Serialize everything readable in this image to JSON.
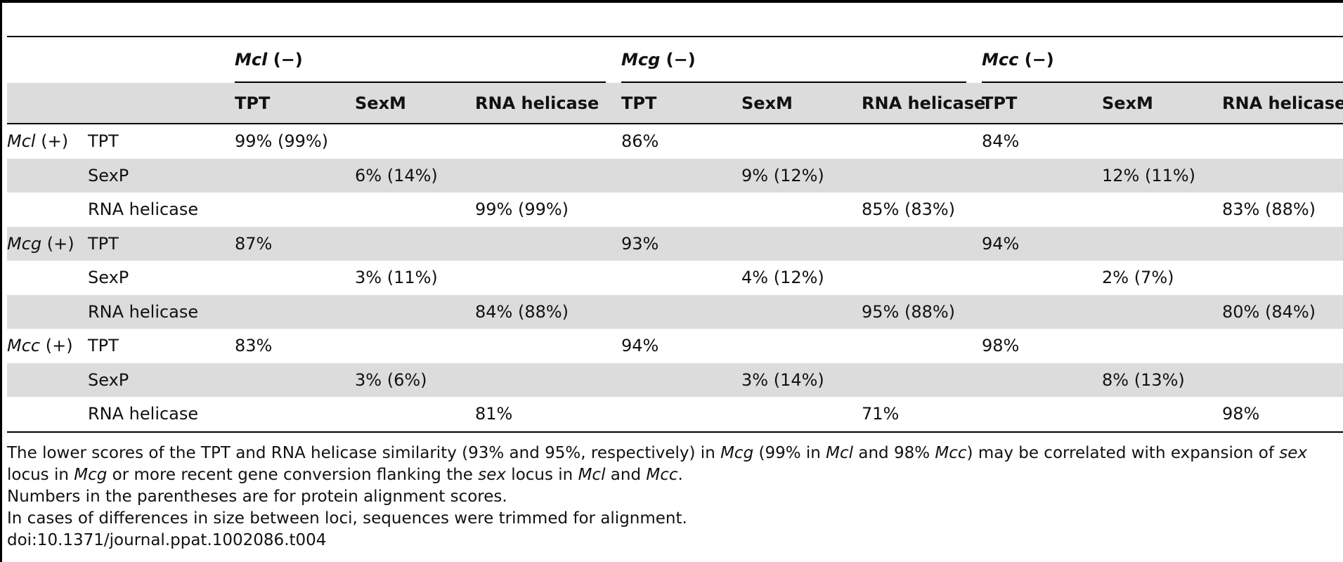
{
  "groups": [
    {
      "species": "Mcl",
      "sign": "(−)"
    },
    {
      "species": "Mcg",
      "sign": "(−)"
    },
    {
      "species": "Mcc",
      "sign": "(−)"
    }
  ],
  "subheaders": [
    "TPT",
    "SexM",
    "RNA helicase"
  ],
  "rows": [
    {
      "species": "Mcl",
      "sign": "(+)",
      "gene": "TPT",
      "col": 0,
      "values": [
        "99% (99%)",
        "86%",
        "84%"
      ]
    },
    {
      "species": "",
      "sign": "",
      "gene": "SexP",
      "col": 1,
      "values": [
        "6% (14%)",
        "9% (12%)",
        "12% (11%)"
      ]
    },
    {
      "species": "",
      "sign": "",
      "gene": "RNA helicase",
      "col": 2,
      "values": [
        "99% (99%)",
        "85% (83%)",
        "83% (88%)"
      ]
    },
    {
      "species": "Mcg",
      "sign": "(+)",
      "gene": "TPT",
      "col": 0,
      "values": [
        "87%",
        "93%",
        "94%"
      ]
    },
    {
      "species": "",
      "sign": "",
      "gene": "SexP",
      "col": 1,
      "values": [
        "3% (11%)",
        "4% (12%)",
        "2% (7%)"
      ]
    },
    {
      "species": "",
      "sign": "",
      "gene": "RNA helicase",
      "col": 2,
      "values": [
        "84% (88%)",
        "95% (88%)",
        "80% (84%)"
      ]
    },
    {
      "species": "Mcc",
      "sign": "(+)",
      "gene": "TPT",
      "col": 0,
      "values": [
        "83%",
        "94%",
        "98%"
      ]
    },
    {
      "species": "",
      "sign": "",
      "gene": "SexP",
      "col": 1,
      "values": [
        "3% (6%)",
        "3% (14%)",
        "8% (13%)"
      ]
    },
    {
      "species": "",
      "sign": "",
      "gene": "RNA helicase",
      "col": 2,
      "values": [
        "81%",
        "71%",
        "98%"
      ]
    }
  ],
  "notes": {
    "n1": {
      "a": "The lower scores of the TPT and RNA helicase similarity (93% and 95%, respectively) in ",
      "b": "Mcg",
      "c": " (99% in ",
      "d": "Mcl",
      "e": " and 98% ",
      "f": "Mcc",
      "g": ") may be correlated with expansion of ",
      "h": "sex",
      "i": " locus in ",
      "j": "Mcg",
      "k": " or more recent gene conversion flanking the ",
      "l": "sex",
      "m": " locus in ",
      "n": "Mcl",
      "o": " and ",
      "p": "Mcc",
      "q": "."
    },
    "n2": "Numbers in the parentheses are for protein alignment scores.",
    "n3": "In cases of differences in size between loci, sequences were trimmed for alignment.",
    "doi": "doi:10.1371/journal.ppat.1002086.t004"
  }
}
